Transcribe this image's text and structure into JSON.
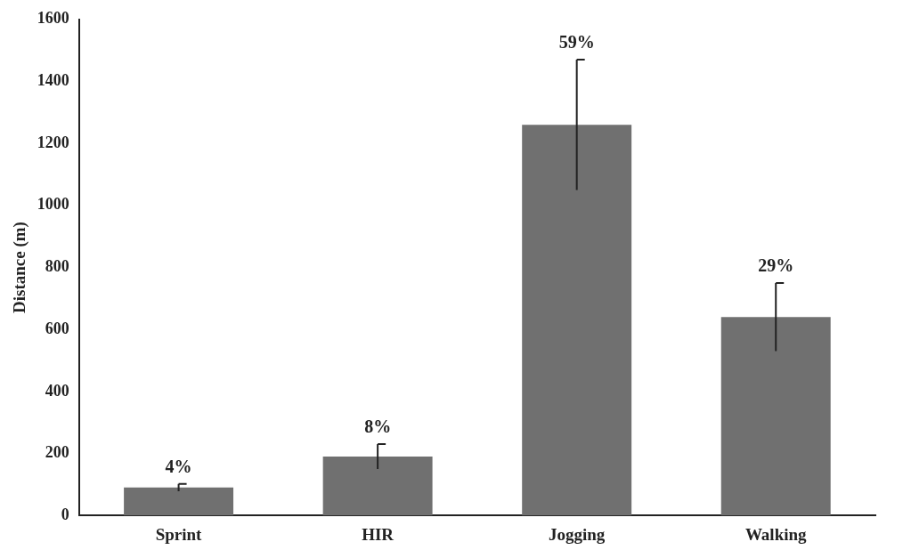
{
  "chart_data": {
    "type": "bar",
    "ylabel": "Distance (m)",
    "categories": [
      "Sprint",
      "HIR",
      "Jogging",
      "Walking"
    ],
    "values": [
      90,
      190,
      1260,
      640
    ],
    "errors": [
      12,
      40,
      210,
      110
    ],
    "annotations": [
      {
        "text": "4%",
        "x": "Sprint",
        "y": 102
      },
      {
        "text": "8%",
        "x": "HIR",
        "y": 230
      },
      {
        "text": "59%",
        "x": "Jogging",
        "y": 1470
      },
      {
        "text": "29%",
        "x": "Walking",
        "y": 750
      }
    ],
    "color": "#707070",
    "ylim": [
      0,
      1600
    ],
    "yticks": [
      0,
      200,
      400,
      600,
      800,
      1000,
      1200,
      1400,
      1600
    ],
    "grid": false,
    "legend": false
  }
}
